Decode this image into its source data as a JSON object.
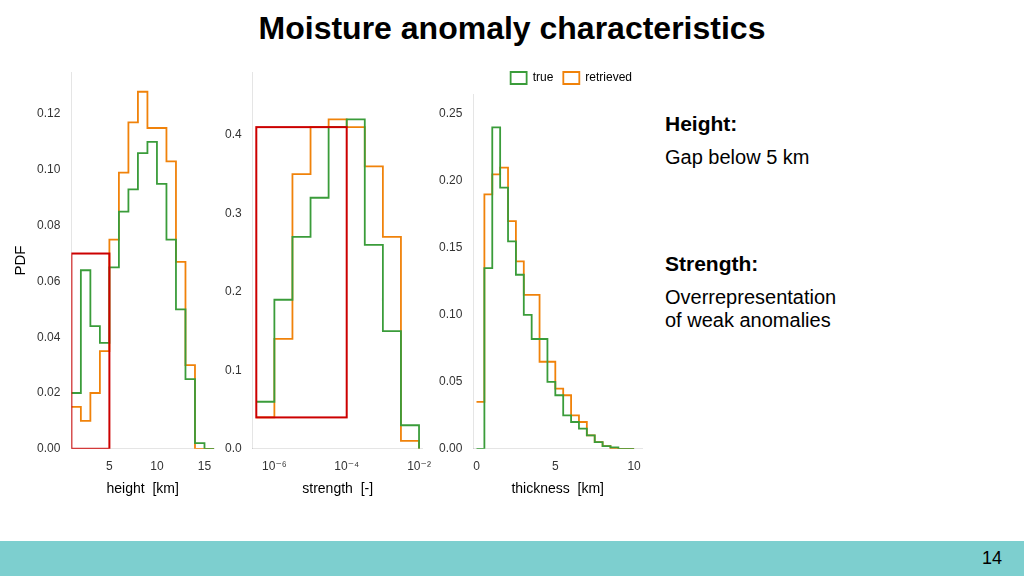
{
  "title": "Moisture anomaly characteristics",
  "annotations": [
    "Height:",
    "Gap below 5 km",
    "Strength:",
    "Overrepresentation\nof weak anomalies"
  ],
  "slide_number": "14",
  "chart_data": [
    {
      "type": "line",
      "line_style": "steps",
      "grid": false,
      "legend": false,
      "xlabel": "height  [km]",
      "ylabel": "PDF",
      "x": [
        1,
        2,
        3,
        4,
        5,
        6,
        7,
        8,
        9,
        10,
        11,
        12,
        13,
        14,
        15,
        16
      ],
      "series": [
        {
          "name": "true",
          "color": "#3a9c3a",
          "values": [
            0.02,
            0.064,
            0.044,
            0.038,
            0.065,
            0.085,
            0.093,
            0.106,
            0.11,
            0.095,
            0.075,
            0.05,
            0.025,
            0.002,
            0.0,
            0.0
          ]
        },
        {
          "name": "retrieved",
          "color": "#f0820a",
          "values": [
            0.015,
            0.01,
            0.02,
            0.035,
            0.075,
            0.099,
            0.117,
            0.128,
            0.115,
            0.115,
            0.103,
            0.067,
            0.03,
            0.0,
            0.0,
            0.0
          ]
        }
      ],
      "xlim": [
        1,
        16
      ],
      "xticks": [
        5,
        10,
        15
      ],
      "ylim": [
        0,
        0.135
      ],
      "yticks": [
        {
          "value": 0,
          "label": "0.00"
        },
        0.02,
        0.04,
        0.06,
        0.08,
        {
          "value": 0.1,
          "label": "0.10"
        },
        0.12
      ],
      "highlight": {
        "x": [
          1,
          5
        ],
        "y": [
          0,
          0.07
        ],
        "color": "#cc0000"
      }
    },
    {
      "type": "line",
      "line_style": "steps",
      "grid": false,
      "legend": false,
      "log": "x",
      "xlabel": "strength  [-]",
      "x": [
        3.16e-07,
        1e-06,
        3.16e-06,
        1e-05,
        3.16e-05,
        0.0001,
        0.000316,
        0.001,
        0.00316,
        0.01
      ],
      "series": [
        {
          "name": "true",
          "color": "#3a9c3a",
          "values": [
            0.06,
            0.19,
            0.27,
            0.32,
            0.41,
            0.42,
            0.26,
            0.15,
            0.03,
            0.0
          ]
        },
        {
          "name": "retrieved",
          "color": "#f0820a",
          "values": [
            0.04,
            0.14,
            0.35,
            0.41,
            0.42,
            0.41,
            0.36,
            0.27,
            0.01,
            0.0
          ]
        }
      ],
      "xlim": [
        2.5118864315095823e-07,
        0.012589254117941675
      ],
      "xticks": [
        {
          "value": 1e-06,
          "label": "10⁻⁶"
        },
        {
          "value": 0.0001,
          "label": "10⁻⁴"
        },
        {
          "value": 0.01,
          "label": "10⁻²"
        }
      ],
      "ylim": [
        0,
        0.48
      ],
      "yticks": [
        {
          "value": 0,
          "label": "0.0"
        },
        0.1,
        0.2,
        0.3,
        0.4
      ],
      "highlight": {
        "x": [
          3.1622776601683797e-07,
          0.0001
        ],
        "y": [
          0.04,
          0.41
        ],
        "color": "#cc0000"
      }
    },
    {
      "type": "line",
      "line_style": "steps",
      "grid": false,
      "legend": "upper right",
      "xlabel": "thickness  [km]",
      "x": [
        0,
        0.5,
        1.0,
        1.5,
        2.0,
        2.5,
        3.0,
        3.5,
        4.0,
        4.5,
        5.0,
        5.5,
        6.0,
        6.5,
        7.0,
        7.5,
        8.0,
        8.5,
        9.0,
        9.5,
        10.0
      ],
      "series": [
        {
          "name": "true",
          "color": "#3a9c3a",
          "values": [
            0.0,
            0.135,
            0.24,
            0.195,
            0.155,
            0.13,
            0.1,
            0.082,
            0.082,
            0.05,
            0.04,
            0.025,
            0.02,
            0.015,
            0.01,
            0.005,
            0.002,
            0.001,
            0.0,
            0.0,
            0.0
          ]
        },
        {
          "name": "retrieved",
          "color": "#f0820a",
          "values": [
            0.035,
            0.19,
            0.205,
            0.21,
            0.17,
            0.14,
            0.115,
            0.115,
            0.065,
            0.065,
            0.045,
            0.04,
            0.025,
            0.02,
            0.01,
            0.005,
            0.002,
            0.0,
            0.0,
            0.0,
            0.0
          ]
        }
      ],
      "xlim": [
        -0.2,
        10.5
      ],
      "xticks": [
        0,
        5,
        10
      ],
      "ylim": [
        0,
        0.265
      ],
      "yticks": [
        {
          "value": 0,
          "label": "0.00"
        },
        0.05,
        {
          "value": 0.1,
          "label": "0.10"
        },
        0.15,
        {
          "value": 0.2,
          "label": "0.20"
        },
        0.25
      ]
    }
  ]
}
